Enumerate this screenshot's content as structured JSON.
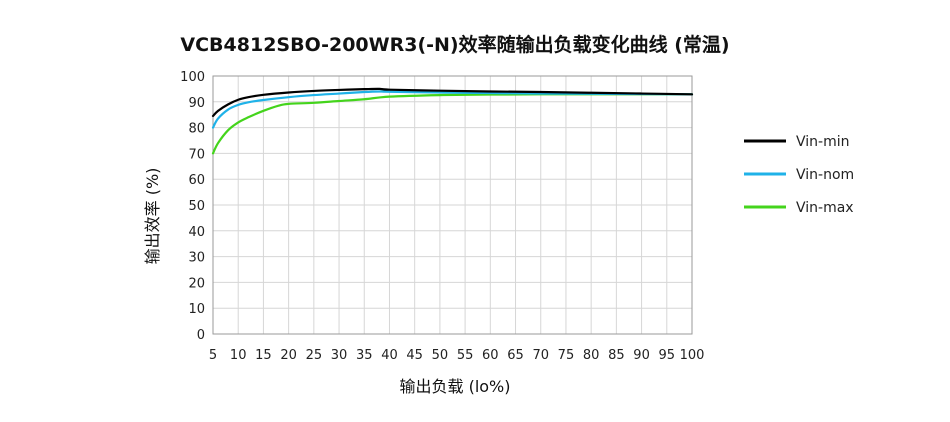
{
  "chart_data": {
    "type": "line",
    "title": "VCB4812SBO-200WR3(-N)效率随输出负载变化曲线 (常温)",
    "xlabel": "输出负载 (lo%)",
    "ylabel": "输出效率 (%)",
    "xlim": [
      5,
      100
    ],
    "ylim": [
      0,
      100
    ],
    "xticks": [
      5,
      10,
      15,
      20,
      25,
      30,
      35,
      40,
      45,
      50,
      55,
      60,
      65,
      70,
      75,
      80,
      85,
      90,
      95,
      100
    ],
    "yticks": [
      0,
      10,
      20,
      30,
      40,
      50,
      60,
      70,
      80,
      90,
      100
    ],
    "grid": true,
    "legend_position": "right",
    "series": [
      {
        "name": "Vin-min",
        "color": "#000000",
        "x": [
          5,
          6,
          8,
          10,
          12,
          15,
          20,
          25,
          30,
          35,
          38,
          40,
          50,
          60,
          70,
          80,
          90,
          100
        ],
        "y": [
          84.5,
          86.5,
          89.0,
          90.8,
          91.8,
          92.7,
          93.6,
          94.2,
          94.6,
          94.9,
          95.0,
          94.7,
          94.3,
          94.0,
          93.8,
          93.5,
          93.2,
          92.9
        ]
      },
      {
        "name": "Vin-nom",
        "color": "#1fb2e8",
        "x": [
          5,
          6,
          8,
          10,
          12,
          15,
          20,
          25,
          30,
          35,
          38,
          40,
          50,
          60,
          70,
          80,
          90,
          100
        ],
        "y": [
          80.0,
          83.5,
          87.0,
          88.8,
          89.8,
          90.7,
          91.8,
          92.6,
          93.2,
          93.8,
          94.0,
          93.9,
          93.6,
          93.4,
          93.2,
          93.1,
          93.0,
          92.9
        ]
      },
      {
        "name": "Vin-max",
        "color": "#44d41c",
        "x": [
          5,
          6,
          8,
          10,
          12,
          15,
          18,
          20,
          25,
          30,
          35,
          40,
          50,
          60,
          70,
          80,
          90,
          100
        ],
        "y": [
          70.0,
          74.0,
          79.0,
          82.0,
          84.0,
          86.5,
          88.5,
          89.2,
          89.6,
          90.3,
          91.0,
          92.0,
          92.6,
          92.8,
          92.9,
          92.9,
          92.9,
          92.9
        ]
      }
    ]
  }
}
